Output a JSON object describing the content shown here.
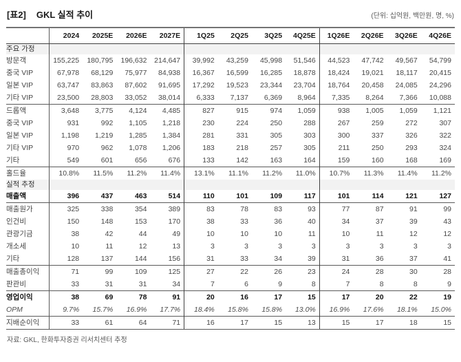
{
  "title": {
    "tag": "[표2]",
    "text": "GKL 실적 추이"
  },
  "unit_note": "(단위: 십억원, 백만원, 명, %)",
  "source_note": "자료: GKL, 한화투자증권 리서치센터 추정",
  "colors": {
    "section_bg": "#f2f2f2",
    "strong_border": "#595959",
    "header_border": "#404040",
    "text": "#474747"
  },
  "table": {
    "columns": [
      "2024",
      "2025E",
      "2026E",
      "2027E",
      "1Q25",
      "2Q25",
      "3Q25",
      "4Q25E",
      "1Q26E",
      "2Q26E",
      "3Q26E",
      "4Q26E"
    ],
    "group_starts": [
      4,
      8
    ],
    "rows": [
      {
        "label": "주요 가정",
        "type": "section",
        "indent": 0
      },
      {
        "label": "방문객",
        "indent": 1,
        "values": [
          "155,225",
          "180,795",
          "196,632",
          "214,647",
          "39,992",
          "43,259",
          "45,998",
          "51,546",
          "44,523",
          "47,742",
          "49,567",
          "54,799"
        ]
      },
      {
        "label": "중국 VIP",
        "indent": 2,
        "values": [
          "67,978",
          "68,129",
          "75,977",
          "84,938",
          "16,367",
          "16,599",
          "16,285",
          "18,878",
          "18,424",
          "19,021",
          "18,117",
          "20,415"
        ]
      },
      {
        "label": "일본 VIP",
        "indent": 2,
        "values": [
          "63,747",
          "83,863",
          "87,602",
          "91,695",
          "17,292",
          "19,523",
          "23,344",
          "23,704",
          "18,764",
          "20,458",
          "24,085",
          "24,296"
        ]
      },
      {
        "label": "기타 VIP",
        "indent": 2,
        "values": [
          "23,500",
          "28,803",
          "33,052",
          "38,014",
          "6,333",
          "7,137",
          "6,369",
          "8,964",
          "7,335",
          "8,264",
          "7,366",
          "10,088"
        ]
      },
      {
        "label": "드롭액",
        "indent": 1,
        "rule": true,
        "values": [
          "3,648",
          "3,775",
          "4,124",
          "4,485",
          "827",
          "915",
          "974",
          "1,059",
          "938",
          "1,005",
          "1,059",
          "1,121"
        ]
      },
      {
        "label": "중국 VIP",
        "indent": 2,
        "values": [
          "931",
          "992",
          "1,105",
          "1,218",
          "230",
          "224",
          "250",
          "288",
          "267",
          "259",
          "272",
          "307"
        ]
      },
      {
        "label": "일본 VIP",
        "indent": 2,
        "values": [
          "1,198",
          "1,219",
          "1,285",
          "1,384",
          "281",
          "331",
          "305",
          "303",
          "300",
          "337",
          "326",
          "322"
        ]
      },
      {
        "label": "기타 VIP",
        "indent": 2,
        "values": [
          "970",
          "962",
          "1,078",
          "1,206",
          "183",
          "218",
          "257",
          "305",
          "211",
          "250",
          "293",
          "324"
        ]
      },
      {
        "label": "기타",
        "indent": 2,
        "values": [
          "549",
          "601",
          "656",
          "676",
          "133",
          "142",
          "163",
          "164",
          "159",
          "160",
          "168",
          "169"
        ]
      },
      {
        "label": "홀드율",
        "indent": 1,
        "rule": true,
        "values": [
          "10.8%",
          "11.5%",
          "11.2%",
          "11.4%",
          "13.1%",
          "11.1%",
          "11.2%",
          "11.0%",
          "10.7%",
          "11.3%",
          "11.4%",
          "11.2%"
        ]
      },
      {
        "label": "실적 추정",
        "type": "section",
        "indent": 0
      },
      {
        "label": "매출액",
        "indent": 1,
        "bold": true,
        "values": [
          "396",
          "437",
          "463",
          "514",
          "110",
          "101",
          "109",
          "117",
          "101",
          "114",
          "121",
          "127"
        ]
      },
      {
        "label": "매출원가",
        "indent": 1,
        "rule": true,
        "values": [
          "325",
          "338",
          "354",
          "389",
          "83",
          "78",
          "83",
          "93",
          "77",
          "87",
          "91",
          "99"
        ]
      },
      {
        "label": "인건비",
        "indent": 2,
        "values": [
          "150",
          "148",
          "153",
          "170",
          "38",
          "33",
          "36",
          "40",
          "34",
          "37",
          "39",
          "43"
        ]
      },
      {
        "label": "관광기금",
        "indent": 2,
        "values": [
          "38",
          "42",
          "44",
          "49",
          "10",
          "10",
          "10",
          "11",
          "10",
          "11",
          "12",
          "12"
        ]
      },
      {
        "label": "개소세",
        "indent": 2,
        "values": [
          "10",
          "11",
          "12",
          "13",
          "3",
          "3",
          "3",
          "3",
          "3",
          "3",
          "3",
          "3"
        ]
      },
      {
        "label": "기타",
        "indent": 2,
        "values": [
          "128",
          "137",
          "144",
          "156",
          "31",
          "33",
          "34",
          "39",
          "31",
          "36",
          "37",
          "41"
        ]
      },
      {
        "label": "매출총이익",
        "indent": 1,
        "rule": true,
        "values": [
          "71",
          "99",
          "109",
          "125",
          "27",
          "22",
          "26",
          "23",
          "24",
          "28",
          "30",
          "28"
        ]
      },
      {
        "label": "판관비",
        "indent": 1,
        "values": [
          "33",
          "31",
          "31",
          "34",
          "7",
          "6",
          "9",
          "8",
          "7",
          "8",
          "8",
          "9"
        ]
      },
      {
        "label": "영업이익",
        "indent": 1,
        "bold": true,
        "rule": true,
        "values": [
          "38",
          "69",
          "78",
          "91",
          "20",
          "16",
          "17",
          "15",
          "17",
          "20",
          "22",
          "19"
        ]
      },
      {
        "label": "OPM",
        "indent": 2,
        "italic": true,
        "values": [
          "9.7%",
          "15.7%",
          "16.9%",
          "17.7%",
          "18.4%",
          "15.8%",
          "15.8%",
          "13.0%",
          "16.9%",
          "17.6%",
          "18.1%",
          "15.0%"
        ]
      },
      {
        "label": "지배순이익",
        "indent": 1,
        "rule": true,
        "last": true,
        "values": [
          "33",
          "61",
          "64",
          "71",
          "16",
          "17",
          "15",
          "13",
          "15",
          "17",
          "18",
          "15"
        ]
      }
    ]
  }
}
